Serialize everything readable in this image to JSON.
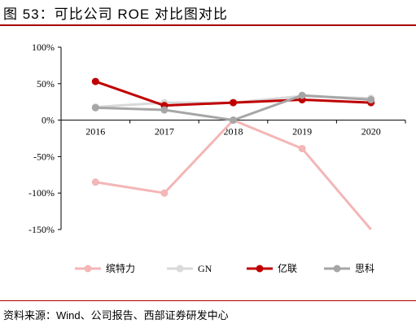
{
  "figure": {
    "title": "图 53：可比公司 ROE 对比图对比",
    "source": "资料来源：Wind、公司报告、西部证券研发中心"
  },
  "chart_data": {
    "type": "line",
    "x": [
      "2016",
      "2017",
      "2018",
      "2019",
      "2020"
    ],
    "ylim": [
      -150,
      100
    ],
    "y_ticks": [
      100,
      50,
      0,
      -50,
      -100,
      -150
    ],
    "y_tick_labels": [
      "100%",
      "50%",
      "0%",
      "-50%",
      "-100%",
      "-150%"
    ],
    "grid": false,
    "legend_position": "bottom",
    "series": [
      {
        "name": "缤特力",
        "color": "#f4b6b6",
        "values": [
          -85,
          -100,
          0,
          -39,
          -150
        ]
      },
      {
        "name": "GN",
        "color": "#d9d9d9",
        "values": [
          18,
          24,
          24,
          33,
          30
        ]
      },
      {
        "name": "亿联",
        "color": "#c00000",
        "values": [
          53,
          20,
          24,
          28,
          24
        ]
      },
      {
        "name": "思科",
        "color": "#a6a6a6",
        "values": [
          17,
          14,
          0,
          34,
          28
        ]
      }
    ]
  }
}
